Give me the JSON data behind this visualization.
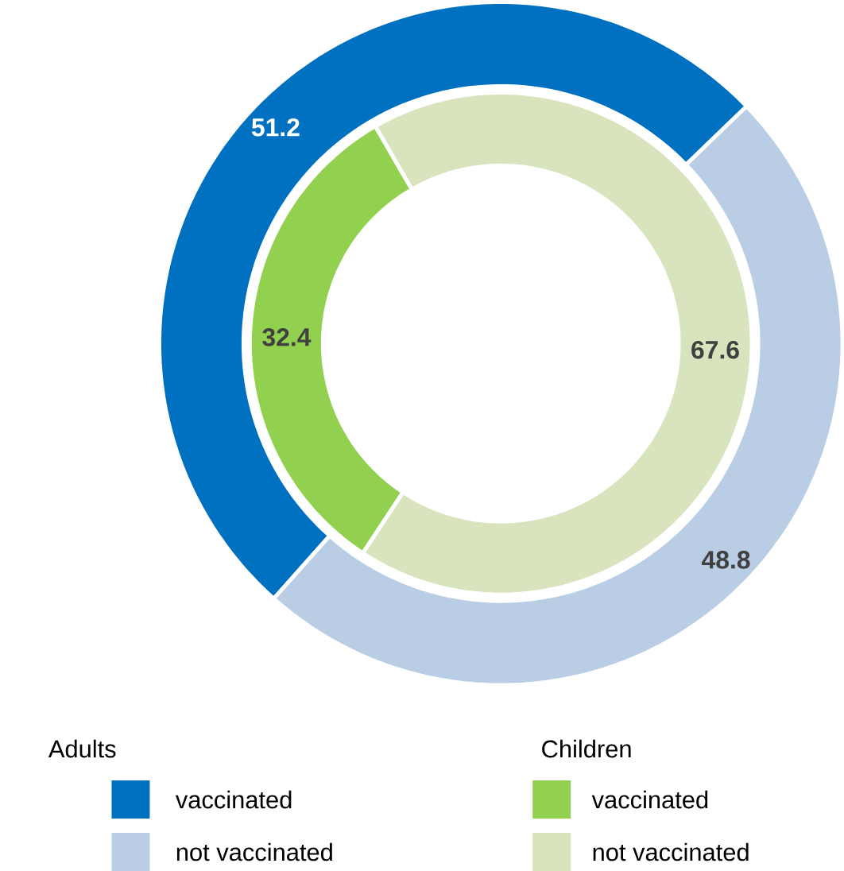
{
  "chart_data": [
    {
      "type": "donut",
      "legend_title": "Adults",
      "categories": [
        "vaccinated",
        "not vaccinated"
      ],
      "values": [
        51.2,
        48.8
      ],
      "colors": [
        "#0070c0",
        "#b9cde5"
      ],
      "data_labels": true,
      "legend": "bottom left"
    },
    {
      "type": "donut",
      "legend_title": "Children",
      "categories": [
        "vaccinated",
        "not vaccinated"
      ],
      "values": [
        32.4,
        67.6
      ],
      "colors": [
        "#92d050",
        "#d7e4bd"
      ],
      "data_labels": true,
      "legend": "bottom right"
    }
  ]
}
